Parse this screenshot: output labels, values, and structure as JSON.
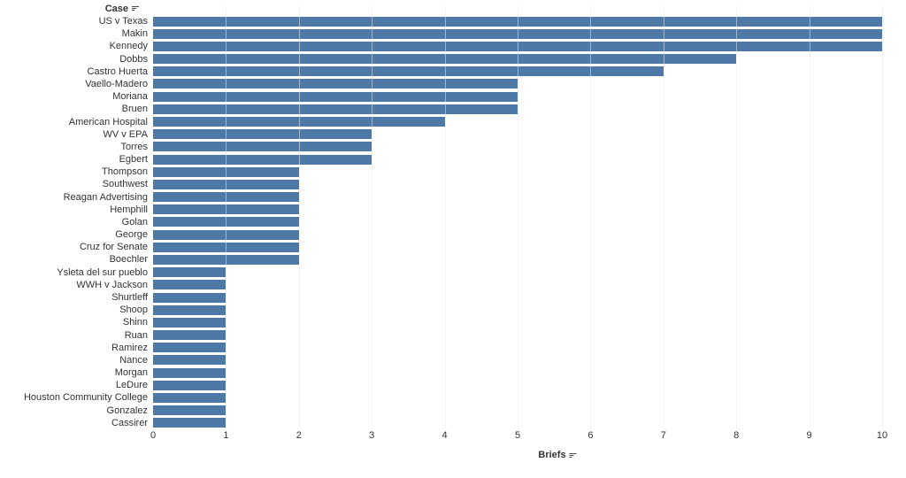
{
  "chart_data": {
    "type": "bar",
    "orientation": "horizontal",
    "title": "",
    "ylabel": "Case",
    "xlabel": "Briefs",
    "sort_indicator": "descending-sort-icon",
    "bar_color": "#4e79a7",
    "gridline_color": "#e9e9e9",
    "text_color": "#333333",
    "xlim": [
      0,
      10
    ],
    "x_ticks": [
      0,
      1,
      2,
      3,
      4,
      5,
      6,
      7,
      8,
      9,
      10
    ],
    "grid": "vertical",
    "legend": "none",
    "categories": [
      "US v Texas",
      "Makin",
      "Kennedy",
      "Dobbs",
      "Castro Huerta",
      "Vaello-Madero",
      "Moriana",
      "Bruen",
      "American Hospital",
      "WV v EPA",
      "Torres",
      "Egbert",
      "Thompson",
      "Southwest",
      "Reagan Advertising",
      "Hemphill",
      "Golan",
      "George",
      "Cruz for Senate",
      "Boechler",
      "Ysleta del sur pueblo",
      "WWH v Jackson",
      "Shurtleff",
      "Shoop",
      "Shinn",
      "Ruan",
      "Ramirez",
      "Nance",
      "Morgan",
      "LeDure",
      "Houston Community College",
      "Gonzalez",
      "Cassirer"
    ],
    "values": [
      10,
      10,
      10,
      8,
      7,
      5,
      5,
      5,
      4,
      3,
      3,
      3,
      2,
      2,
      2,
      2,
      2,
      2,
      2,
      2,
      1,
      1,
      1,
      1,
      1,
      1,
      1,
      1,
      1,
      1,
      1,
      1,
      1
    ]
  }
}
